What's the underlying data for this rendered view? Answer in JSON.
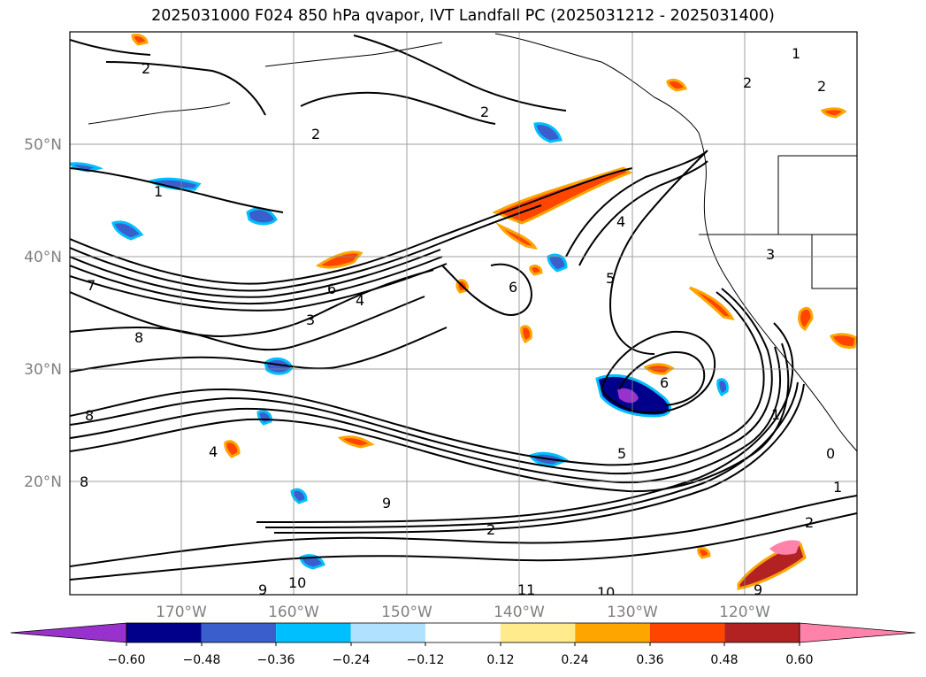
{
  "title": "2025031000 F024 850 hPa qvapor, IVT Landfall PC (2025031212 - 2025031400)",
  "latitude_labels": [
    "50°N",
    "40°N",
    "30°N",
    "20°N"
  ],
  "longitude_labels": [
    "170°W",
    "160°W",
    "150°W",
    "140°W",
    "130°W",
    "120°W"
  ],
  "colorbar": {
    "tick_labels": [
      "−0.60",
      "−0.48",
      "−0.36",
      "−0.24",
      "−0.12",
      "0.12",
      "0.24",
      "0.36",
      "0.48",
      "0.60"
    ],
    "colors": [
      "#9932cc",
      "#00008b",
      "#3a5fcd",
      "#00bfff",
      "#b0e2ff",
      "#ffffff",
      "#ffeb8c",
      "#ffa500",
      "#ff4500",
      "#b22222",
      "#ff82ab"
    ]
  },
  "contour_labels": [
    "2",
    "2",
    "2",
    "1",
    "1",
    "7",
    "6",
    "4",
    "3",
    "8",
    "6",
    "5",
    "8",
    "4",
    "8",
    "9",
    "10",
    "11",
    "9",
    "10",
    "2",
    "2",
    "6",
    "1",
    "0",
    "1",
    "2",
    "9",
    "4",
    "5",
    "3",
    "2"
  ],
  "colors": {
    "shading_negative": "#3a5fcd",
    "shading_positive": "#ff4500",
    "gridlines": "#888888",
    "coastline": "#000000"
  }
}
